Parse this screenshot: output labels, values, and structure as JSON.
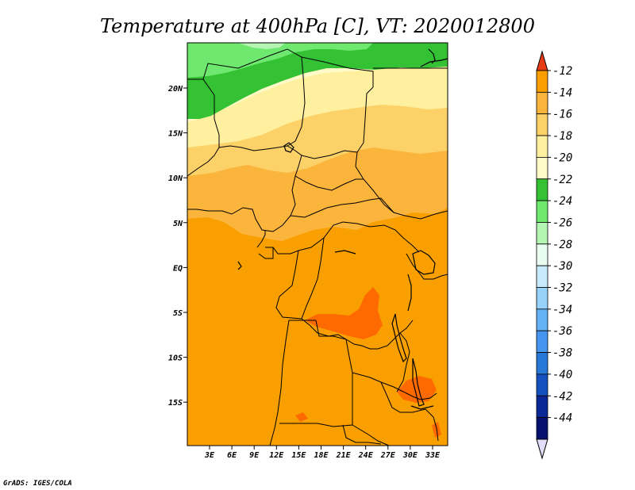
{
  "title": "Temperature at 400hPa [C], VT: 2020012800",
  "credit": "GrADS: IGES/COLA",
  "map": {
    "lon_labels": [
      "3E",
      "6E",
      "9E",
      "12E",
      "15E",
      "18E",
      "21E",
      "24E",
      "27E",
      "30E",
      "33E"
    ],
    "lat_labels": [
      "20N",
      "15N",
      "10N",
      "5N",
      "EQ",
      "5S",
      "10S",
      "15S"
    ]
  },
  "colorbar": {
    "levels": [
      "-12",
      "-14",
      "-16",
      "-18",
      "-20",
      "-22",
      "-24",
      "-26",
      "-28",
      "-30",
      "-32",
      "-34",
      "-36",
      "-38",
      "-40",
      "-42",
      "-44"
    ],
    "colors": [
      "#ff6a00",
      "#f9a000",
      "#fbb43c",
      "#fcd268",
      "#fff0a0",
      "#fffac8",
      "#34c234",
      "#6ee86e",
      "#b4f5b4",
      "#e8fdf0",
      "#c8e8fb",
      "#96d2fa",
      "#64b4f5",
      "#4696f0",
      "#2878d8",
      "#1450be",
      "#0a2896",
      "#06106e"
    ],
    "top_arrow_color": "#e83a14",
    "bottom_arrow_color": "#e2defa"
  }
}
